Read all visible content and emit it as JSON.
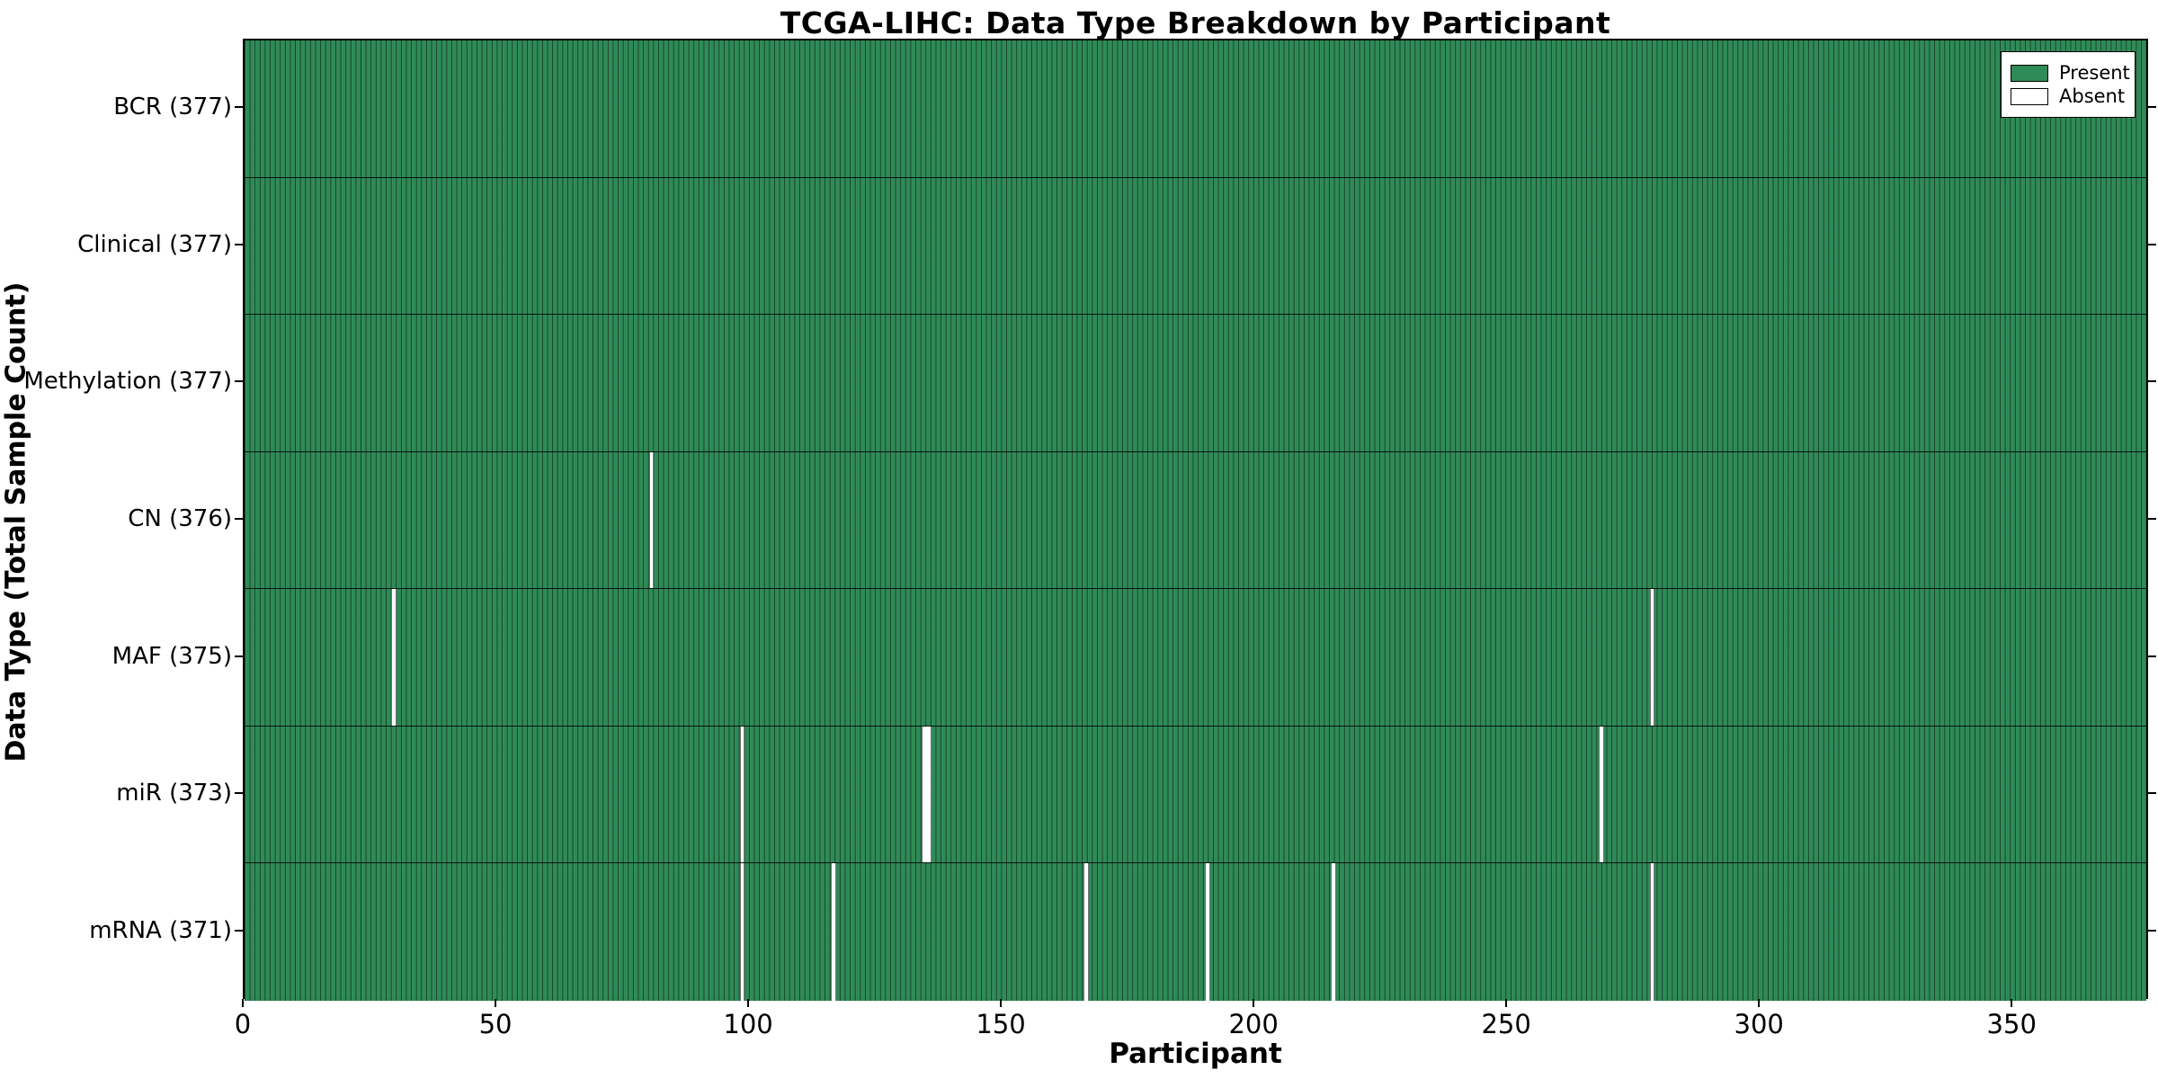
{
  "title": "TCGA-LIHC: Data Type Breakdown by Participant",
  "xlabel": "Participant",
  "ylabel": "Data Type (Total Sample Count)",
  "legend": {
    "present_label": "Present",
    "absent_label": "Absent"
  },
  "colors": {
    "present": "#2E8B57",
    "absent": "#FFFFFF",
    "bar_edge": "#000000",
    "plot_border": "#000000",
    "text": "#000000"
  },
  "chart_data": {
    "type": "heatmap",
    "subtype": "presence-absence participant matrix",
    "title": "TCGA-LIHC: Data Type Breakdown by Participant",
    "xlabel": "Participant",
    "ylabel": "Data Type (Total Sample Count)",
    "x_range": [
      0,
      377
    ],
    "n_participants": 377,
    "x_ticks": [
      0,
      50,
      100,
      150,
      200,
      250,
      300,
      350
    ],
    "grid": false,
    "legend_position": "upper right",
    "legend_entries": [
      "Present",
      "Absent"
    ],
    "rows": [
      {
        "label": "BCR",
        "display": "BCR (377)",
        "total_present": 377,
        "absent_indices": []
      },
      {
        "label": "Clinical",
        "display": "Clinical (377)",
        "total_present": 377,
        "absent_indices": []
      },
      {
        "label": "Methylation",
        "display": "Methylation (377)",
        "total_present": 377,
        "absent_indices": []
      },
      {
        "label": "CN",
        "display": "CN (376)",
        "total_present": 376,
        "absent_indices": [
          80
        ]
      },
      {
        "label": "MAF",
        "display": "MAF (375)",
        "total_present": 375,
        "absent_indices": [
          29,
          278
        ]
      },
      {
        "label": "miR",
        "display": "miR (373)",
        "total_present": 373,
        "absent_indices": [
          98,
          134,
          135,
          268
        ]
      },
      {
        "label": "mRNA",
        "display": "mRNA (371)",
        "total_present": 371,
        "absent_indices": [
          98,
          116,
          166,
          190,
          215,
          278
        ]
      }
    ]
  }
}
